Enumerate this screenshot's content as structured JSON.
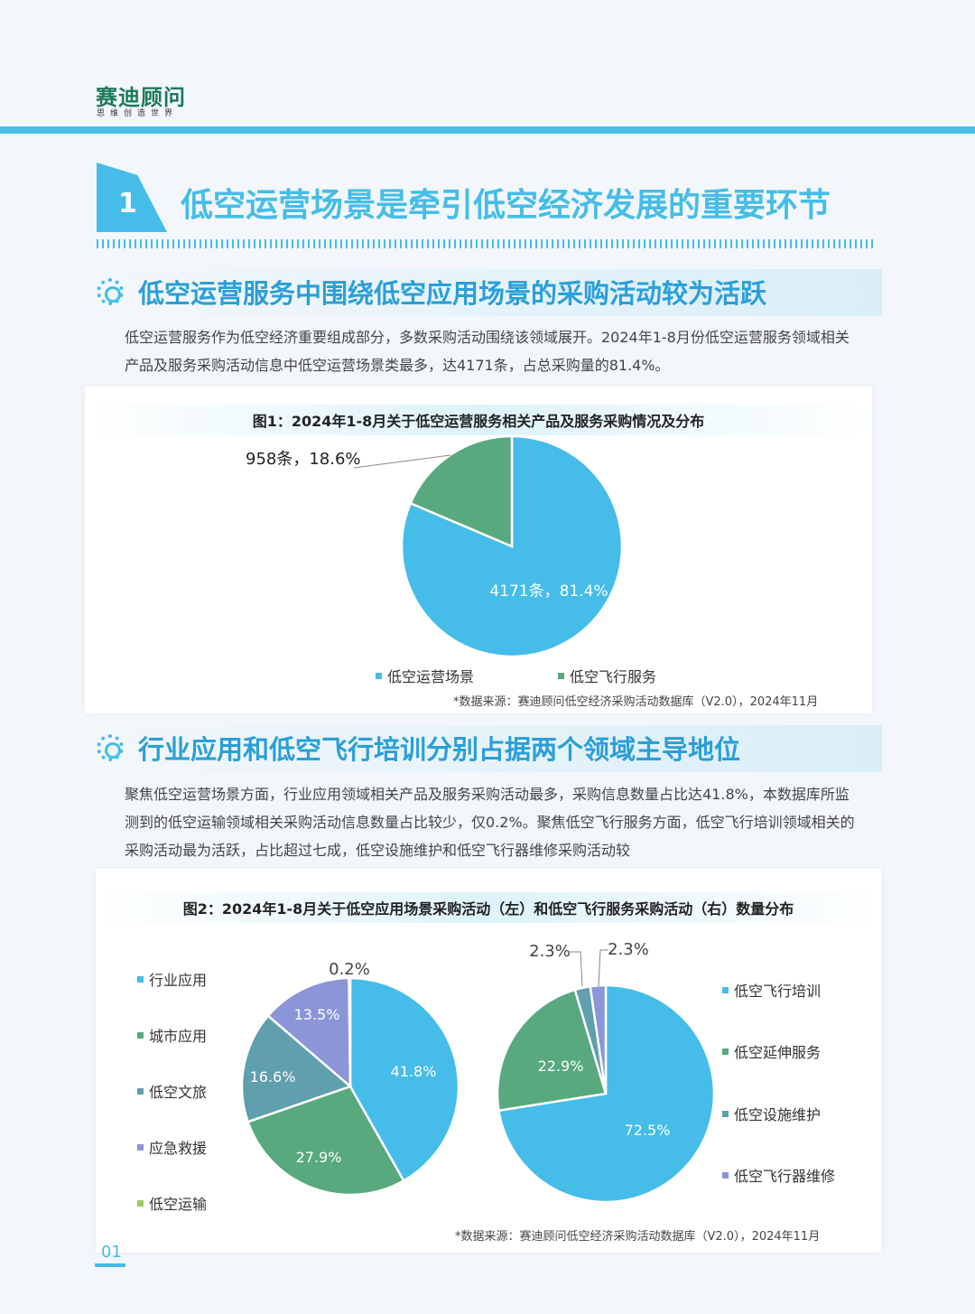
{
  "header": {
    "logo": "赛迪顾问",
    "slogan": "思维创造世界"
  },
  "section": {
    "number": "1",
    "title": "低空运营场景是牵引低空经济发展的重要环节"
  },
  "sub1": {
    "title": "低空运营服务中围绕低空应用场景的采购活动较为活跃",
    "paragraph": "低空运营服务作为低空经济重要组成部分，多数采购活动围绕该领域展开。2024年1-8月份低空运营服务领域相关产品及服务采购活动信息中低空运营场景类最多，达4171条，占总采购量的81.4%。"
  },
  "fig1": {
    "title": "图1：2024年1-8月关于低空运营服务相关产品及服务采购情况及分布",
    "source": "*数据来源：赛迪顾问低空经济采购活动数据库（V2.0），2024年11月"
  },
  "sub2": {
    "title": "行业应用和低空飞行培训分别占据两个领域主导地位",
    "paragraph": "聚焦低空运营场景方面，行业应用领域相关产品及服务采购活动最多，采购信息数量占比达41.8%，本数据库所监测到的低空运输领域相关采购活动信息数量占比较少，仅0.2%。聚焦低空飞行服务方面，低空飞行培训领域相关的采购活动最为活跃，占比超过七成，低空设施维护和低空飞行器维修采购活动较"
  },
  "fig2": {
    "title": "图2：2024年1-8月关于低空应用场景采购活动（左）和低空飞行服务采购活动（右）数量分布",
    "source": "*数据来源：赛迪顾问低空经济采购活动数据库（V2.0），2024年11月"
  },
  "page_number": "01",
  "colors": {
    "accent": "#45bde8",
    "blue": "#45bde8",
    "green": "#58a97e",
    "teal": "#5f9fae",
    "purple": "#8c95d8",
    "lightgreen": "#9acd5a"
  },
  "chart_data": [
    {
      "type": "pie",
      "title": "图1：2024年1-8月关于低空运营服务相关产品及服务采购情况及分布",
      "start": "top",
      "direction": "clockwise",
      "slices": [
        {
          "name": "低空运营场景",
          "count": 4171,
          "value": 81.4,
          "label": "4171条，81.4%",
          "color": "#45bde8"
        },
        {
          "name": "低空飞行服务",
          "count": 958,
          "value": 18.6,
          "label": "958条，18.6%",
          "color": "#58a97e"
        }
      ],
      "legend": "bottom"
    },
    {
      "type": "pie",
      "title": "低空应用场景采购活动（左）",
      "start": "top",
      "direction": "clockwise",
      "slices": [
        {
          "name": "行业应用",
          "value": 41.8,
          "label": "41.8%",
          "color": "#45bde8"
        },
        {
          "name": "城市应用",
          "value": 27.9,
          "label": "27.9%",
          "color": "#58a97e"
        },
        {
          "name": "低空文旅",
          "value": 16.6,
          "label": "16.6%",
          "color": "#5f9fae"
        },
        {
          "name": "应急救援",
          "value": 13.5,
          "label": "13.5%",
          "color": "#8c95d8"
        },
        {
          "name": "低空运输",
          "value": 0.2,
          "label": "0.2%",
          "color": "#9acd5a"
        }
      ],
      "legend": "left"
    },
    {
      "type": "pie",
      "title": "低空飞行服务采购活动（右）",
      "start": "top",
      "direction": "clockwise",
      "slices": [
        {
          "name": "低空飞行培训",
          "value": 72.5,
          "label": "72.5%",
          "color": "#45bde8"
        },
        {
          "name": "低空延伸服务",
          "value": 22.9,
          "label": "22.9%",
          "color": "#58a97e"
        },
        {
          "name": "低空设施维护",
          "value": 2.3,
          "label": "2.3%",
          "color": "#5f9fae"
        },
        {
          "name": "低空飞行器维修",
          "value": 2.3,
          "label": "2.3%",
          "color": "#8c95d8"
        }
      ],
      "legend": "right"
    }
  ]
}
